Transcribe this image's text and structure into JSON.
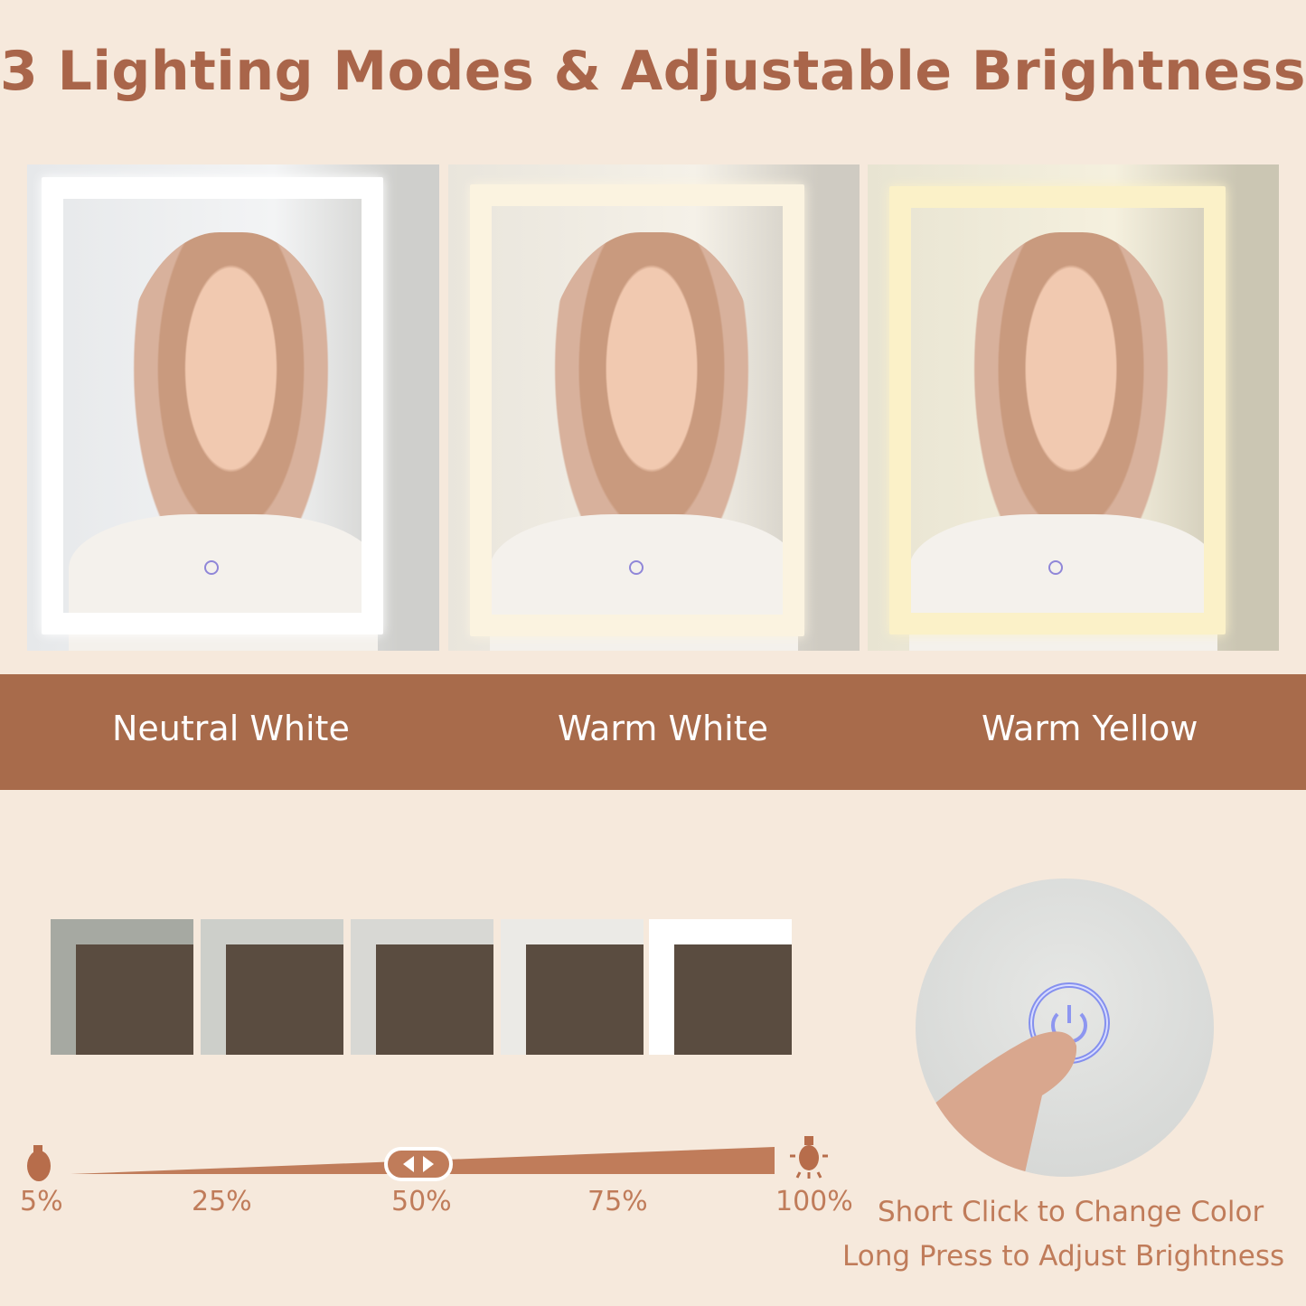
{
  "title": "3 Lighting Modes & Adjustable Brightness",
  "modes": [
    {
      "label": "Neutral White",
      "frame_color": "#ffffff"
    },
    {
      "label": "Warm White",
      "frame_color": "#fbf3e0"
    },
    {
      "label": "Warm Yellow",
      "frame_color": "#fbf1c8"
    }
  ],
  "brightness": {
    "levels": [
      "5%",
      "25%",
      "50%",
      "75%",
      "100%"
    ],
    "current_percent": 50
  },
  "captions": {
    "short_click": "Short Click to Change Color",
    "long_press": "Long Press to Adjust Brightness"
  },
  "colors": {
    "background": "#f6e9dc",
    "accent": "#a86b4b",
    "text": "#c07c5a"
  }
}
